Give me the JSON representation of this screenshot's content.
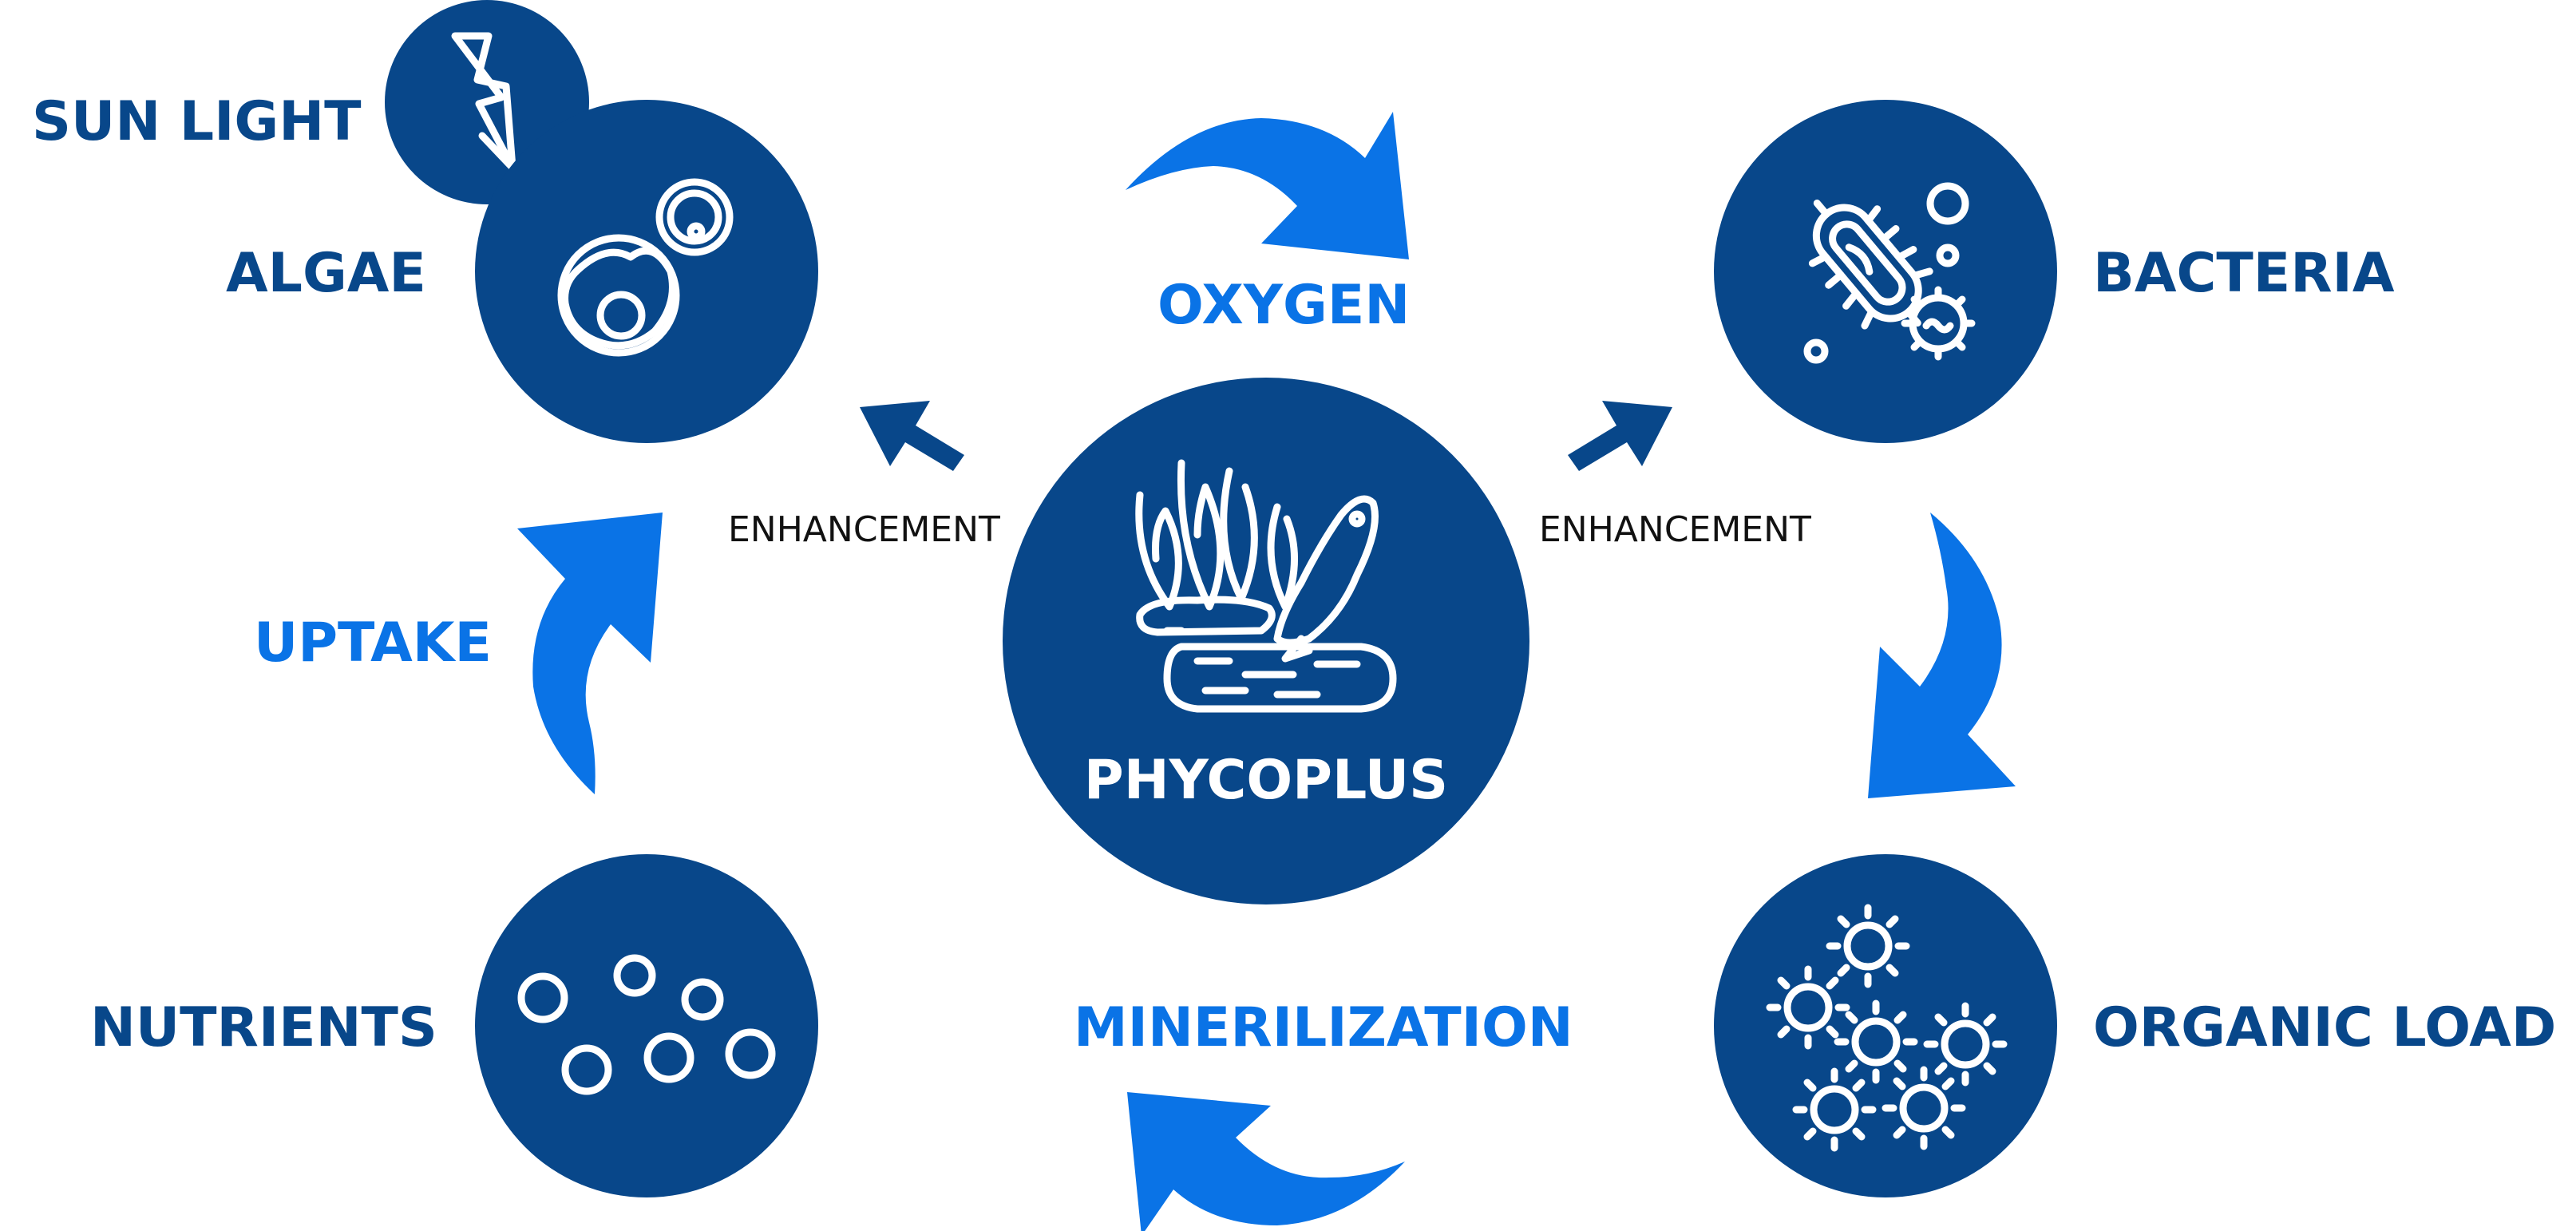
{
  "colors": {
    "node_fill": "#08478a",
    "label_dark": "#08478a",
    "label_light": "#0a73e6",
    "arrow_light": "#0a73e6",
    "arrow_dark": "#08478a",
    "icon_stroke": "#ffffff",
    "background": "#ffffff"
  },
  "labels": {
    "sun_light": "SUN LIGHT",
    "algae": "ALGAE",
    "oxygen": "OXYGEN",
    "bacteria": "BACTERIA",
    "uptake": "UPTAKE",
    "center": "PHYCOPLUS",
    "enhancement_left": "ENHANCEMENT",
    "enhancement_right": "ENHANCEMENT",
    "nutrients": "NUTRIENTS",
    "minerilization": "MINERILIZATION",
    "organic_load": "ORGANIC LOAD"
  },
  "icons": {
    "sun_light": "lightning-icon",
    "algae": "algae-cell-icon",
    "bacteria": "bacteria-icon",
    "center": "seaweed-fish-icon",
    "nutrients": "nutrient-bubbles-icon",
    "organic_load": "microbe-cluster-icon"
  }
}
